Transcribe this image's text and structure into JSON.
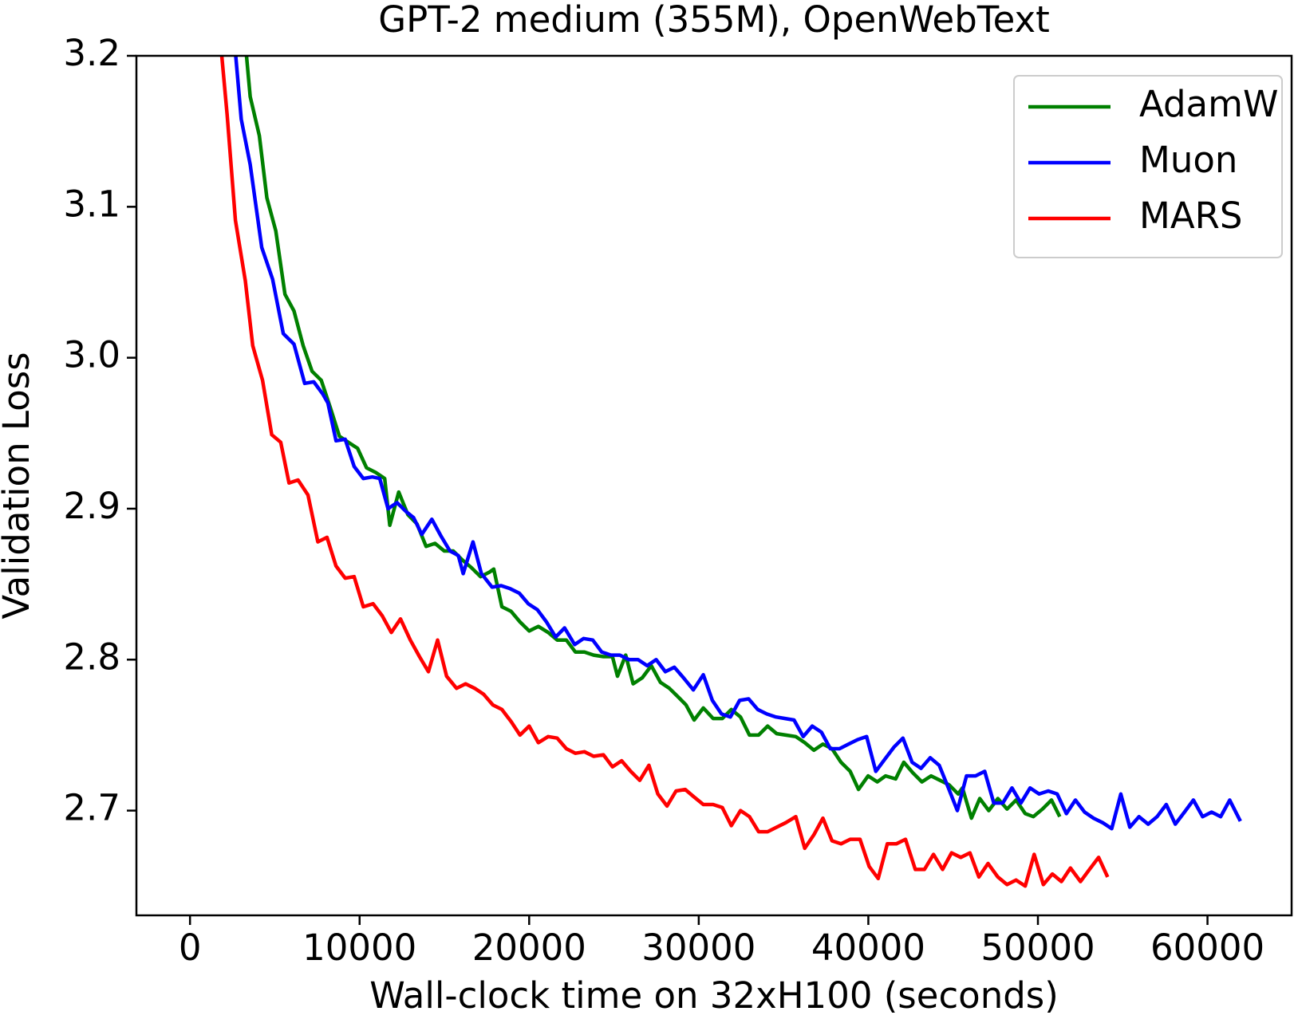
{
  "chart_data": {
    "type": "line",
    "title": "GPT-2 medium (355M), OpenWebText",
    "x_label": "Wall-clock time on 32xH100 (seconds)",
    "y_label": "Validation Loss",
    "xlim": [
      -3160,
      64960
    ],
    "ylim": [
      2.6306,
      3.2
    ],
    "xticks": [
      0,
      10000,
      20000,
      30000,
      40000,
      50000,
      60000
    ],
    "yticks": [
      2.7,
      2.8,
      2.9,
      {
        "value": 3,
        "label": "3.0"
      },
      3.1,
      3.2
    ],
    "grid": false,
    "legend": "upper right",
    "series": [
      {
        "name": "AdamW",
        "color": "#008000",
        "x": [
          3210,
          3550,
          4090,
          4530,
          5060,
          5600,
          6130,
          6670,
          7200,
          7740,
          8270,
          8810,
          9340,
          9880,
          10410,
          10950,
          11480,
          11780,
          12310,
          12850,
          13380,
          13920,
          14450,
          14990,
          15520,
          16060,
          16590,
          17130,
          17660,
          17910,
          18390,
          18930,
          19460,
          20000,
          20540,
          21120,
          21650,
          22190,
          22730,
          23260,
          23800,
          24380,
          24910,
          25210,
          25690,
          26130,
          26670,
          27200,
          27740,
          28270,
          28810,
          29250,
          29730,
          30270,
          30850,
          31390,
          31920,
          32460,
          32990,
          33530,
          34060,
          34600,
          35130,
          35720,
          36250,
          36790,
          37320,
          37860,
          38390,
          38930,
          39420,
          39990,
          40530,
          41020,
          41610,
          42090,
          42630,
          43160,
          43700,
          44230,
          44770,
          45300,
          45550,
          46080,
          46570,
          47100,
          47640,
          48180,
          48710,
          49250,
          49730,
          50270,
          50800,
          51290
        ],
        "values": [
          3.215,
          3.173,
          3.147,
          3.106,
          3.084,
          3.042,
          3.031,
          3.008,
          2.991,
          2.985,
          2.967,
          2.948,
          2.944,
          2.94,
          2.927,
          2.924,
          2.92,
          2.889,
          2.911,
          2.896,
          2.89,
          2.875,
          2.877,
          2.872,
          2.872,
          2.866,
          2.861,
          2.855,
          2.858,
          2.86,
          2.835,
          2.832,
          2.825,
          2.819,
          2.822,
          2.818,
          2.813,
          2.813,
          2.805,
          2.805,
          2.803,
          2.802,
          2.802,
          2.789,
          2.803,
          2.784,
          2.788,
          2.796,
          2.785,
          2.781,
          2.775,
          2.77,
          2.76,
          2.768,
          2.761,
          2.761,
          2.767,
          2.762,
          2.75,
          2.75,
          2.756,
          2.751,
          2.75,
          2.749,
          2.745,
          2.74,
          2.744,
          2.741,
          2.732,
          2.726,
          2.714,
          2.723,
          2.719,
          2.723,
          2.721,
          2.732,
          2.725,
          2.719,
          2.723,
          2.72,
          2.717,
          2.711,
          2.715,
          2.695,
          2.708,
          2.7,
          2.708,
          2.701,
          2.707,
          2.698,
          2.696,
          2.701,
          2.707,
          2.696
        ]
      },
      {
        "name": "Muon",
        "color": "#0000ff",
        "x": [
          2580,
          3020,
          3550,
          4230,
          4870,
          5500,
          6130,
          6760,
          7300,
          7830,
          8130,
          8610,
          9150,
          9680,
          10220,
          10750,
          11190,
          11680,
          12210,
          12750,
          13190,
          13670,
          14260,
          14790,
          15330,
          15820,
          16110,
          16690,
          17180,
          17810,
          18350,
          18880,
          19420,
          19950,
          20490,
          21020,
          21560,
          22090,
          22680,
          23210,
          23750,
          24280,
          24820,
          25350,
          25890,
          26420,
          26960,
          27490,
          28030,
          28560,
          29100,
          29680,
          30270,
          30800,
          31340,
          31870,
          32410,
          32940,
          33480,
          34010,
          34550,
          35090,
          35620,
          36160,
          36690,
          37230,
          37760,
          38300,
          38830,
          39370,
          39900,
          40440,
          40970,
          41510,
          42040,
          42580,
          43110,
          43650,
          44180,
          44720,
          45250,
          45790,
          46320,
          46860,
          47400,
          47930,
          48470,
          49000,
          49540,
          50070,
          50610,
          51140,
          51680,
          52210,
          52750,
          53280,
          53820,
          54350,
          54890,
          55420,
          55960,
          56500,
          57030,
          57570,
          58100,
          58640,
          59170,
          59710,
          60240,
          60780,
          61310,
          61940
        ],
        "values": [
          3.215,
          3.158,
          3.128,
          3.073,
          3.052,
          3.016,
          3.009,
          2.983,
          2.984,
          2.976,
          2.97,
          2.945,
          2.946,
          2.928,
          2.92,
          2.921,
          2.92,
          2.9,
          2.904,
          2.898,
          2.894,
          2.883,
          2.893,
          2.882,
          2.872,
          2.869,
          2.857,
          2.878,
          2.857,
          2.848,
          2.849,
          2.847,
          2.844,
          2.837,
          2.833,
          2.825,
          2.815,
          2.821,
          2.81,
          2.814,
          2.813,
          2.805,
          2.803,
          2.803,
          2.8,
          2.8,
          2.796,
          2.8,
          2.792,
          2.795,
          2.788,
          2.78,
          2.79,
          2.773,
          2.764,
          2.762,
          2.773,
          2.774,
          2.767,
          2.764,
          2.762,
          2.761,
          2.76,
          2.749,
          2.756,
          2.752,
          2.741,
          2.741,
          2.744,
          2.747,
          2.749,
          2.726,
          2.734,
          2.742,
          2.748,
          2.732,
          2.728,
          2.735,
          2.73,
          2.715,
          2.7,
          2.723,
          2.723,
          2.726,
          2.705,
          2.705,
          2.715,
          2.705,
          2.715,
          2.711,
          2.713,
          2.711,
          2.698,
          2.707,
          2.699,
          2.695,
          2.692,
          2.688,
          2.711,
          2.689,
          2.696,
          2.691,
          2.696,
          2.704,
          2.691,
          2.699,
          2.707,
          2.696,
          2.699,
          2.696,
          2.707,
          2.693
        ]
      },
      {
        "name": "MARS",
        "color": "#ff0000",
        "x": [
          1750,
          2190,
          2680,
          3260,
          3700,
          4280,
          4820,
          5350,
          5840,
          6370,
          6960,
          7540,
          8080,
          8610,
          9150,
          9680,
          10220,
          10800,
          11340,
          11870,
          12410,
          12990,
          13530,
          14060,
          14600,
          15130,
          15720,
          16250,
          16790,
          17320,
          17860,
          18390,
          18930,
          19460,
          20000,
          20540,
          21120,
          21650,
          22190,
          22730,
          23260,
          23800,
          24380,
          24910,
          25450,
          25990,
          26520,
          27060,
          27590,
          28130,
          28660,
          29200,
          29730,
          30270,
          30850,
          31390,
          31920,
          32460,
          32990,
          33530,
          34060,
          34600,
          35130,
          35720,
          36250,
          36790,
          37320,
          37860,
          38390,
          38930,
          39510,
          40050,
          40580,
          41120,
          41650,
          42190,
          42770,
          43310,
          43840,
          44380,
          44910,
          45450,
          45990,
          46520,
          47060,
          47640,
          48180,
          48710,
          49250,
          49780,
          50320,
          50850,
          51390,
          51920,
          52510,
          53040,
          53580,
          54110
        ],
        "values": [
          3.215,
          3.161,
          3.091,
          3.051,
          3.008,
          2.985,
          2.949,
          2.944,
          2.917,
          2.919,
          2.909,
          2.878,
          2.881,
          2.862,
          2.854,
          2.855,
          2.835,
          2.837,
          2.829,
          2.818,
          2.827,
          2.813,
          2.802,
          2.792,
          2.813,
          2.789,
          2.781,
          2.784,
          2.781,
          2.777,
          2.77,
          2.767,
          2.759,
          2.75,
          2.756,
          2.745,
          2.749,
          2.748,
          2.741,
          2.738,
          2.739,
          2.736,
          2.737,
          2.729,
          2.733,
          2.726,
          2.72,
          2.73,
          2.711,
          2.703,
          2.713,
          2.714,
          2.709,
          2.704,
          2.704,
          2.702,
          2.69,
          2.7,
          2.696,
          2.686,
          2.686,
          2.689,
          2.692,
          2.696,
          2.675,
          2.684,
          2.695,
          2.68,
          2.678,
          2.681,
          2.681,
          2.663,
          2.655,
          2.678,
          2.678,
          2.681,
          2.661,
          2.661,
          2.671,
          2.661,
          2.672,
          2.669,
          2.672,
          2.656,
          2.665,
          2.656,
          2.651,
          2.654,
          2.65,
          2.671,
          2.651,
          2.658,
          2.653,
          2.662,
          2.653,
          2.661,
          2.669,
          2.656
        ]
      }
    ]
  }
}
